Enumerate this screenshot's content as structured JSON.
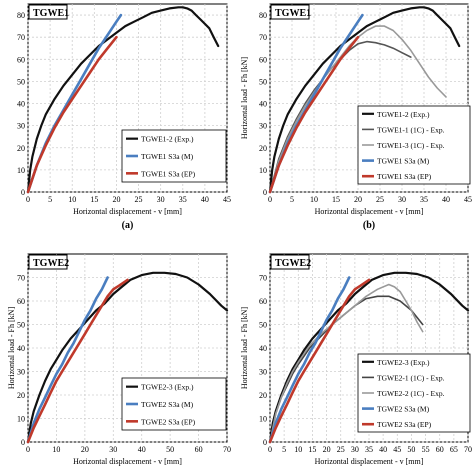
{
  "chart_data": [
    {
      "type": "line",
      "title": "TGWE1",
      "xlabel": "Horizontal displacement - v [mm]",
      "ylabel": "",
      "panel_label": "(a)",
      "xlim": [
        0,
        45
      ],
      "ylim": [
        0,
        85
      ],
      "xticks": [
        0,
        5,
        10,
        15,
        20,
        25,
        30,
        35,
        40,
        45
      ],
      "yticks": [
        0,
        10,
        20,
        30,
        40,
        50,
        60,
        70,
        80
      ],
      "grid": true,
      "legend_position": "bottom-right",
      "series": [
        {
          "name": "TGWE1-2 (Exp.)",
          "color": "#111111",
          "width": 2.2,
          "x": [
            0,
            0.5,
            1,
            2,
            3,
            4,
            6,
            8,
            10,
            12,
            14,
            16,
            18,
            20,
            22,
            24,
            26,
            28,
            30,
            32,
            34,
            35,
            36,
            37,
            38,
            39,
            40,
            41,
            42,
            43
          ],
          "y": [
            0,
            10,
            16,
            24,
            30,
            35,
            42,
            48,
            53,
            58,
            62,
            66,
            69,
            72,
            75,
            77,
            79,
            81,
            82,
            83,
            83.5,
            83.5,
            83,
            82,
            80,
            78,
            76,
            74,
            70,
            66
          ]
        },
        {
          "name": "TGWE1  S3a (M)",
          "color": "#4a7ec0",
          "width": 2.6,
          "x": [
            0,
            1,
            2,
            4,
            6,
            8,
            10,
            12,
            14,
            16,
            18,
            20,
            21
          ],
          "y": [
            0,
            6,
            12,
            22,
            30,
            37,
            44,
            51,
            58,
            65,
            71,
            77,
            80
          ]
        },
        {
          "name": "TGWE1  S3a (EP)",
          "color": "#c0392b",
          "width": 2.6,
          "x": [
            0,
            1,
            2,
            4,
            6,
            8,
            10,
            12,
            14,
            16,
            18,
            20
          ],
          "y": [
            0,
            6,
            12,
            21,
            29,
            36,
            42,
            48,
            54,
            60,
            65,
            70
          ]
        }
      ]
    },
    {
      "type": "line",
      "title": "TGWE1",
      "xlabel": "Horizontal displacement - v [mm]",
      "ylabel": "Horizontal load - Fh [kN]",
      "panel_label": "(b)",
      "xlim": [
        0,
        45
      ],
      "ylim": [
        0,
        85
      ],
      "xticks": [
        0,
        5,
        10,
        15,
        20,
        25,
        30,
        35,
        40,
        45
      ],
      "yticks": [
        0,
        10,
        20,
        30,
        40,
        50,
        60,
        70,
        80
      ],
      "grid": true,
      "legend_position": "bottom-right",
      "series": [
        {
          "name": "TGWE1-2 (Exp.)",
          "color": "#111111",
          "width": 2.2,
          "x": [
            0,
            0.5,
            1,
            2,
            3,
            4,
            6,
            8,
            10,
            12,
            14,
            16,
            18,
            20,
            22,
            24,
            26,
            28,
            30,
            32,
            34,
            35,
            36,
            37,
            38,
            39,
            40,
            41,
            42,
            43
          ],
          "y": [
            0,
            10,
            16,
            24,
            30,
            35,
            42,
            48,
            53,
            58,
            62,
            66,
            69,
            72,
            75,
            77,
            79,
            81,
            82,
            83,
            83.5,
            83.5,
            83,
            82,
            80,
            78,
            76,
            74,
            70,
            66
          ]
        },
        {
          "name": "TGWE1-1 (1C) - Exp.",
          "color": "#555555",
          "width": 1.6,
          "x": [
            0,
            2,
            4,
            6,
            8,
            10,
            12,
            14,
            16,
            18,
            20,
            22,
            24,
            26,
            28,
            30,
            32
          ],
          "y": [
            0,
            15,
            25,
            33,
            40,
            46,
            51,
            56,
            60,
            64,
            67,
            68,
            67.5,
            66.5,
            65,
            63,
            61
          ]
        },
        {
          "name": "TGWE1-3 (1C) - Exp.",
          "color": "#999999",
          "width": 1.6,
          "x": [
            0,
            2,
            4,
            6,
            8,
            10,
            12,
            14,
            16,
            18,
            20,
            22,
            24,
            26,
            28,
            30,
            32,
            34,
            36,
            38,
            40
          ],
          "y": [
            0,
            14,
            24,
            32,
            39,
            45,
            51,
            56,
            61,
            66,
            70,
            73,
            75,
            75,
            73,
            69,
            64,
            58,
            52,
            47,
            43
          ]
        },
        {
          "name": "TGWE1  S3a (M)",
          "color": "#4a7ec0",
          "width": 2.6,
          "x": [
            0,
            1,
            2,
            4,
            6,
            8,
            10,
            12,
            14,
            16,
            18,
            20,
            21
          ],
          "y": [
            0,
            6,
            12,
            22,
            30,
            37,
            44,
            51,
            58,
            65,
            71,
            77,
            80
          ]
        },
        {
          "name": "TGWE1  S3a (EP)",
          "color": "#c0392b",
          "width": 2.6,
          "x": [
            0,
            1,
            2,
            4,
            6,
            8,
            10,
            12,
            14,
            16,
            18,
            20
          ],
          "y": [
            0,
            6,
            12,
            21,
            29,
            36,
            42,
            48,
            54,
            60,
            65,
            70
          ]
        }
      ]
    },
    {
      "type": "line",
      "title": "TGWE2",
      "xlabel": "Horizontal displacement - v [mm]",
      "ylabel": "Horizontal load - Fh [kN]",
      "panel_label": "",
      "xlim": [
        0,
        70
      ],
      "ylim": [
        0,
        80
      ],
      "xticks": [
        0,
        10,
        20,
        30,
        40,
        50,
        60,
        70
      ],
      "yticks": [
        0,
        10,
        20,
        30,
        40,
        50,
        60,
        70
      ],
      "grid": true,
      "legend_position": "bottom-right",
      "series": [
        {
          "name": "TGWE2-3 (Exp.)",
          "color": "#111111",
          "width": 2.2,
          "x": [
            0,
            1,
            2,
            4,
            6,
            8,
            10,
            12,
            15,
            18,
            21,
            24,
            27,
            30,
            33,
            36,
            40,
            44,
            48,
            52,
            56,
            60,
            64,
            68,
            70
          ],
          "y": [
            0,
            8,
            13,
            20,
            26,
            31,
            35,
            39,
            44,
            48,
            52,
            56,
            59,
            63,
            66,
            69,
            71,
            72,
            72,
            71.5,
            70,
            67,
            63,
            58,
            56
          ]
        },
        {
          "name": "TGWE2  S3a (M)",
          "color": "#4a7ec0",
          "width": 2.6,
          "x": [
            0,
            2,
            4,
            6,
            8,
            10,
            12,
            14,
            16,
            18,
            20,
            22,
            24,
            26,
            28
          ],
          "y": [
            0,
            8,
            14,
            19,
            24,
            29,
            33,
            38,
            42,
            47,
            52,
            56,
            61,
            65,
            70
          ]
        },
        {
          "name": "TGWE2  S3a (EP)",
          "color": "#c0392b",
          "width": 2.6,
          "x": [
            0,
            2,
            4,
            6,
            8,
            10,
            12,
            14,
            16,
            18,
            20,
            22,
            24,
            26,
            28,
            30,
            32,
            35
          ],
          "y": [
            0,
            6,
            11,
            16,
            21,
            26,
            30,
            34,
            38,
            42,
            46,
            50,
            54,
            58,
            62,
            65,
            66.5,
            69
          ]
        }
      ]
    },
    {
      "type": "line",
      "title": "TGWE2",
      "xlabel": "Horizontal displacement - v [mm]",
      "ylabel": "Horizontal load - Fh [kN]",
      "panel_label": "",
      "xlim": [
        0,
        70
      ],
      "ylim": [
        0,
        80
      ],
      "xticks": [
        0,
        5,
        10,
        15,
        20,
        25,
        30,
        35,
        40,
        45,
        50,
        55,
        60,
        65,
        70
      ],
      "yticks": [
        0,
        10,
        20,
        30,
        40,
        50,
        60,
        70
      ],
      "grid": true,
      "legend_position": "bottom-right",
      "series": [
        {
          "name": "TGWE2-3 (Exp.)",
          "color": "#111111",
          "width": 2.2,
          "x": [
            0,
            1,
            2,
            4,
            6,
            8,
            10,
            12,
            15,
            18,
            21,
            24,
            27,
            30,
            33,
            36,
            40,
            44,
            48,
            52,
            56,
            60,
            64,
            68,
            70
          ],
          "y": [
            0,
            8,
            13,
            20,
            26,
            31,
            35,
            39,
            44,
            48,
            52,
            56,
            59,
            63,
            66,
            69,
            71,
            72,
            72,
            71.5,
            70,
            67,
            63,
            58,
            56
          ]
        },
        {
          "name": "TGWE2-1 (1C) - Exp.",
          "color": "#444444",
          "width": 1.6,
          "x": [
            0,
            2,
            4,
            6,
            8,
            10,
            14,
            18,
            22,
            26,
            30,
            34,
            38,
            42,
            46,
            50,
            54
          ],
          "y": [
            0,
            12,
            19,
            24,
            29,
            33,
            40,
            45,
            50,
            54,
            58,
            61,
            62,
            62,
            60,
            56,
            50
          ]
        },
        {
          "name": "TGWE2-2 (1C) - Exp.",
          "color": "#999999",
          "width": 1.6,
          "x": [
            0,
            2,
            4,
            6,
            8,
            10,
            14,
            18,
            22,
            26,
            30,
            34,
            38,
            42,
            44,
            46,
            48,
            50,
            52,
            54
          ],
          "y": [
            0,
            12,
            19,
            25,
            30,
            34,
            41,
            46,
            50,
            54,
            58,
            62,
            65,
            67,
            66,
            64,
            60,
            56,
            51,
            47
          ]
        },
        {
          "name": "TGWE2  S3a (M)",
          "color": "#4a7ec0",
          "width": 2.6,
          "x": [
            0,
            2,
            4,
            6,
            8,
            10,
            12,
            14,
            16,
            18,
            20,
            22,
            24,
            26,
            28
          ],
          "y": [
            0,
            8,
            14,
            19,
            24,
            29,
            33,
            38,
            42,
            47,
            52,
            56,
            61,
            65,
            70
          ]
        },
        {
          "name": "TGWE2  S3a (EP)",
          "color": "#c0392b",
          "width": 2.6,
          "x": [
            0,
            2,
            4,
            6,
            8,
            10,
            12,
            14,
            16,
            18,
            20,
            22,
            24,
            26,
            28,
            30,
            32,
            35
          ],
          "y": [
            0,
            6,
            11,
            16,
            21,
            26,
            30,
            34,
            38,
            42,
            46,
            50,
            54,
            58,
            62,
            65,
            66.5,
            69
          ]
        }
      ]
    }
  ]
}
